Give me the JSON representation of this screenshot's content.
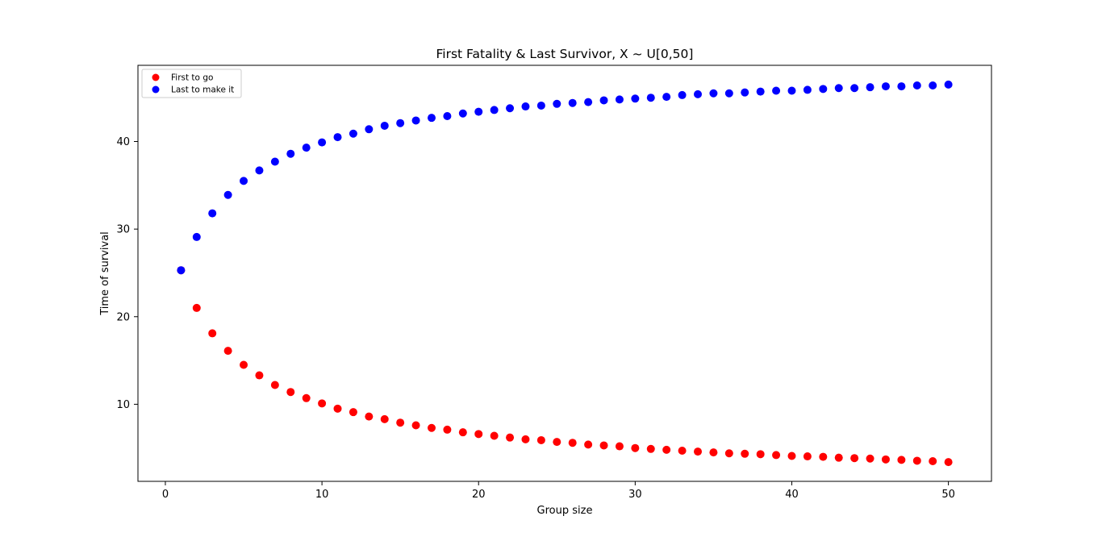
{
  "chart_data": {
    "type": "scatter",
    "title": "First Fatality & Last Survivor, X ~ U[0,50]",
    "xlabel": "Group size",
    "ylabel": "Time of survival",
    "xlim": [
      -1.75,
      52.75
    ],
    "ylim": [
      1.2,
      48.7
    ],
    "xticks": [
      0,
      10,
      20,
      30,
      40,
      50
    ],
    "yticks": [
      10,
      20,
      30,
      40
    ],
    "legend_position": "top-left",
    "grid": false,
    "series": [
      {
        "name": "First to go",
        "color": "#ff0000",
        "x": [
          1,
          2,
          3,
          4,
          5,
          6,
          7,
          8,
          9,
          10,
          11,
          12,
          13,
          14,
          15,
          16,
          17,
          18,
          19,
          20,
          21,
          22,
          23,
          24,
          25,
          26,
          27,
          28,
          29,
          30,
          31,
          32,
          33,
          34,
          35,
          36,
          37,
          38,
          39,
          40,
          41,
          42,
          43,
          44,
          45,
          46,
          47,
          48,
          49,
          50
        ],
        "y": [
          25.3,
          21.0,
          18.1,
          16.1,
          14.5,
          13.3,
          12.2,
          11.4,
          10.7,
          10.1,
          9.5,
          9.1,
          8.6,
          8.3,
          7.9,
          7.6,
          7.3,
          7.1,
          6.8,
          6.6,
          6.4,
          6.2,
          6.0,
          5.9,
          5.7,
          5.6,
          5.4,
          5.3,
          5.2,
          5.0,
          4.9,
          4.8,
          4.7,
          4.6,
          4.5,
          4.4,
          4.35,
          4.3,
          4.2,
          4.1,
          4.05,
          4.0,
          3.9,
          3.85,
          3.8,
          3.7,
          3.65,
          3.55,
          3.5,
          3.4
        ]
      },
      {
        "name": "Last to make it",
        "color": "#0000ff",
        "x": [
          1,
          2,
          3,
          4,
          5,
          6,
          7,
          8,
          9,
          10,
          11,
          12,
          13,
          14,
          15,
          16,
          17,
          18,
          19,
          20,
          21,
          22,
          23,
          24,
          25,
          26,
          27,
          28,
          29,
          30,
          31,
          32,
          33,
          34,
          35,
          36,
          37,
          38,
          39,
          40,
          41,
          42,
          43,
          44,
          45,
          46,
          47,
          48,
          49,
          50
        ],
        "y": [
          25.3,
          29.1,
          31.8,
          33.9,
          35.5,
          36.7,
          37.7,
          38.6,
          39.3,
          39.9,
          40.5,
          40.9,
          41.4,
          41.8,
          42.1,
          42.4,
          42.7,
          42.9,
          43.2,
          43.4,
          43.6,
          43.8,
          44.0,
          44.1,
          44.3,
          44.4,
          44.5,
          44.7,
          44.8,
          44.9,
          45.0,
          45.1,
          45.3,
          45.4,
          45.5,
          45.5,
          45.6,
          45.7,
          45.8,
          45.8,
          45.9,
          46.0,
          46.1,
          46.1,
          46.2,
          46.3,
          46.3,
          46.4,
          46.4,
          46.5
        ]
      }
    ]
  }
}
